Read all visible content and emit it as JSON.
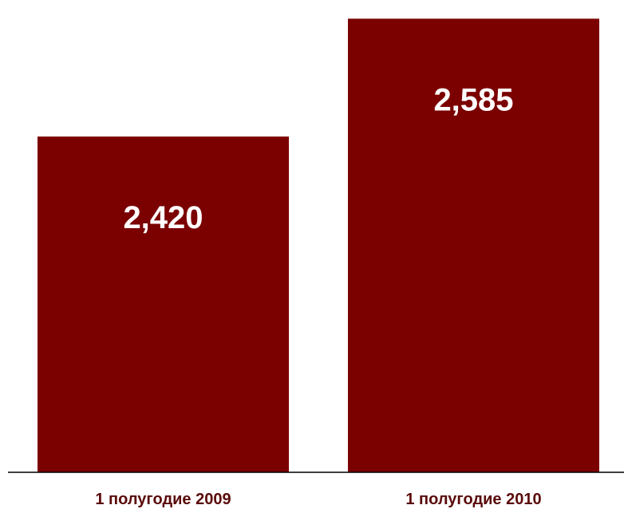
{
  "chart_data": {
    "type": "bar",
    "categories": [
      "1 полугодие 2009",
      "1 полугодие 2010"
    ],
    "values": [
      2420,
      2585
    ],
    "data_labels": [
      "2,420",
      "2,585"
    ],
    "ylim": [
      1950,
      2600
    ],
    "grid": false,
    "legend": "none",
    "colors": {
      "bar": "#7b0000",
      "data_label": "#ffffff",
      "tick_label": "#5a0a0a",
      "axis": "#000000"
    }
  }
}
